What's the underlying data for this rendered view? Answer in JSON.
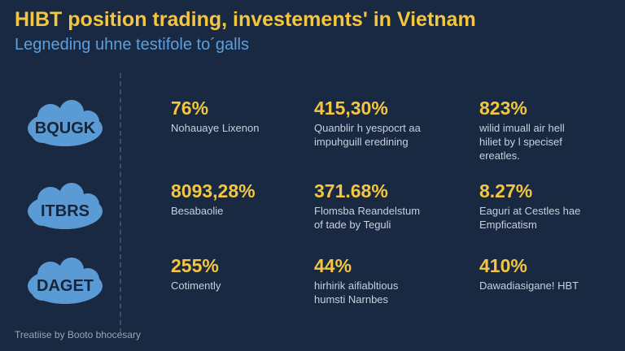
{
  "header": {
    "title": "HIBT position trading, investements' in Vietnam",
    "subtitle": "Legneding uhne testifole to´galls"
  },
  "rows": [
    {
      "label": "BQUGK",
      "cells": [
        {
          "value": "76%",
          "caption": [
            "Nohauaye Lixenon"
          ]
        },
        {
          "value": "415,30%",
          "caption": [
            "Quanblir h yespocrt aa",
            "impuhguill eredining"
          ]
        },
        {
          "value": "823%",
          "caption": [
            "wilid imuall air hell",
            "hiliet by l specisef",
            "ereatles."
          ]
        }
      ]
    },
    {
      "label": "ITBRS",
      "cells": [
        {
          "value": "8093,28%",
          "caption": [
            "Besabaolie"
          ]
        },
        {
          "value": "371.68%",
          "caption": [
            "Flomsba Reandelstum",
            "of tade by Teguli"
          ]
        },
        {
          "value": "8.27%",
          "caption": [
            "Eaguri at Cestles hae",
            "Empficatism"
          ]
        }
      ]
    },
    {
      "label": "DAGET",
      "cells": [
        {
          "value": "255%",
          "caption": [
            "Cotimently"
          ]
        },
        {
          "value": "44%",
          "caption": [
            "hirhirik aifiabltious",
            "humsti Narnbes"
          ]
        },
        {
          "value": "410%",
          "caption": [
            "Dawadiasigane! HBT"
          ]
        }
      ]
    }
  ],
  "footer": "Treatiise by Booto bhocesary"
}
